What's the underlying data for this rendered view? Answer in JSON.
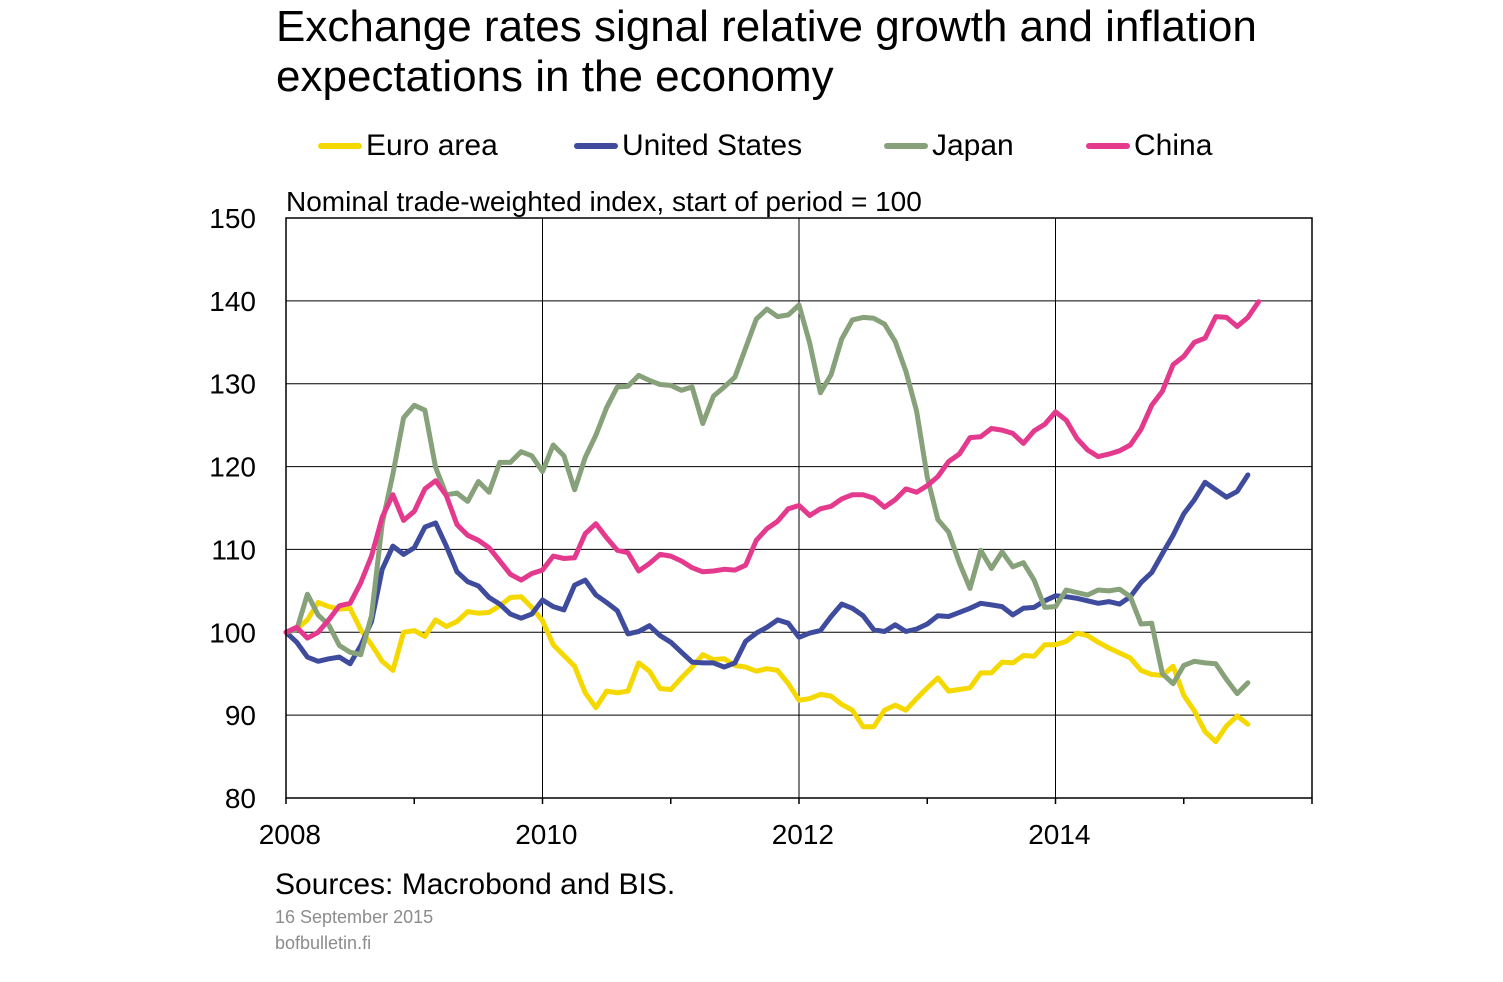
{
  "title": "Exchange rates signal relative growth and inflation expectations in the economy",
  "subtitle": "Nominal trade-weighted index, start of period = 100",
  "source": "Sources: Macrobond and BIS.",
  "date": "16 September 2015",
  "site": "bofbulletin.fi",
  "chart_data": {
    "type": "line",
    "title": "Exchange rates signal relative growth and inflation expectations in the economy",
    "ylabel": "Nominal trade-weighted index, start of period = 100",
    "xlabel": "",
    "ylim": [
      80,
      150
    ],
    "yticks": [
      80,
      90,
      100,
      110,
      120,
      130,
      140,
      150
    ],
    "xlim": [
      2008,
      2016
    ],
    "xtick_labels": [
      "2008",
      "2010",
      "2012",
      "2014"
    ],
    "x_start": "2008-01",
    "x_step": "monthly",
    "grid": true,
    "legend_position": "top",
    "series": [
      {
        "name": "Euro area",
        "color": "#f5d800",
        "values": [
          100.0,
          100.4,
          101.5,
          103.6,
          103.1,
          102.8,
          102.9,
          100.3,
          98.5,
          96.5,
          95.4,
          100.0,
          100.2,
          99.5,
          101.5,
          100.7,
          101.3,
          102.5,
          102.3,
          102.4,
          103.2,
          104.2,
          104.3,
          103.0,
          101.4,
          98.5,
          97.2,
          95.9,
          92.7,
          90.9,
          92.9,
          92.7,
          92.9,
          96.3,
          95.3,
          93.2,
          93.1,
          94.5,
          95.8,
          97.3,
          96.7,
          96.8,
          96.0,
          95.8,
          95.3,
          95.6,
          95.4,
          93.8,
          91.8,
          92.0,
          92.5,
          92.3,
          91.3,
          90.6,
          88.6,
          88.6,
          90.6,
          91.2,
          90.6,
          92.0,
          93.3,
          94.5,
          92.9,
          93.1,
          93.3,
          95.1,
          95.1,
          96.4,
          96.3,
          97.2,
          97.1,
          98.5,
          98.5,
          98.9,
          99.9,
          99.6,
          98.8,
          98.1,
          97.5,
          96.9,
          95.4,
          94.9,
          94.8,
          95.9,
          92.4,
          90.5,
          88.0,
          86.8,
          88.7,
          89.9,
          88.9
        ]
      },
      {
        "name": "United States",
        "color": "#3f4c9e",
        "values": [
          100.0,
          98.8,
          97.0,
          96.5,
          96.8,
          97.0,
          96.2,
          98.4,
          101.3,
          107.6,
          110.4,
          109.4,
          110.2,
          112.7,
          113.2,
          110.4,
          107.3,
          106.1,
          105.6,
          104.2,
          103.4,
          102.2,
          101.7,
          102.2,
          103.9,
          103.1,
          102.7,
          105.7,
          106.3,
          104.5,
          103.6,
          102.6,
          99.8,
          100.1,
          100.8,
          99.6,
          98.8,
          97.6,
          96.4,
          96.3,
          96.3,
          95.8,
          96.3,
          98.9,
          99.9,
          100.6,
          101.5,
          101.1,
          99.4,
          99.9,
          100.2,
          101.9,
          103.4,
          102.9,
          102.0,
          100.3,
          100.1,
          100.9,
          100.1,
          100.4,
          101.0,
          102.0,
          101.9,
          102.4,
          102.9,
          103.5,
          103.3,
          103.1,
          102.1,
          102.9,
          103.0,
          103.8,
          104.4,
          104.3,
          104.1,
          103.8,
          103.5,
          103.7,
          103.4,
          104.3,
          106.0,
          107.2,
          109.5,
          111.7,
          114.3,
          116.0,
          118.1,
          117.2,
          116.3,
          117.0,
          119.0
        ]
      },
      {
        "name": "Japan",
        "color": "#87a17a",
        "values": [
          100.0,
          100.3,
          104.6,
          102.1,
          100.9,
          98.4,
          97.6,
          97.3,
          102.0,
          113.1,
          119.1,
          125.9,
          127.4,
          126.8,
          119.9,
          116.6,
          116.8,
          115.8,
          118.2,
          116.9,
          120.5,
          120.5,
          121.8,
          121.3,
          119.4,
          122.6,
          121.3,
          117.2,
          121.1,
          123.8,
          127.1,
          129.6,
          129.7,
          131.0,
          130.4,
          129.9,
          129.8,
          129.2,
          129.6,
          125.2,
          128.5,
          129.6,
          130.8,
          134.3,
          137.8,
          139.0,
          138.1,
          138.3,
          139.5,
          134.9,
          128.9,
          131.1,
          135.4,
          137.7,
          138.0,
          137.9,
          137.2,
          135.1,
          131.5,
          126.7,
          118.7,
          113.6,
          112.1,
          108.4,
          105.3,
          109.9,
          107.7,
          109.7,
          107.9,
          108.4,
          106.3,
          103.0,
          103.1,
          105.1,
          104.8,
          104.5,
          105.1,
          105.0,
          105.2,
          104.3,
          101.0,
          101.1,
          95.0,
          93.8,
          96.0,
          96.5,
          96.3,
          96.2,
          94.3,
          92.6,
          93.9
        ]
      },
      {
        "name": "China",
        "color": "#e43a8e",
        "values": [
          100.0,
          100.6,
          99.3,
          100.0,
          101.5,
          103.2,
          103.5,
          106.0,
          109.2,
          113.9,
          116.6,
          113.5,
          114.6,
          117.3,
          118.3,
          116.5,
          113.0,
          111.7,
          111.1,
          110.2,
          108.6,
          107.0,
          106.3,
          107.1,
          107.5,
          109.2,
          108.9,
          109.0,
          111.9,
          113.1,
          111.4,
          109.9,
          109.6,
          107.4,
          108.3,
          109.4,
          109.2,
          108.6,
          107.8,
          107.3,
          107.4,
          107.6,
          107.5,
          108.1,
          111.1,
          112.5,
          113.4,
          114.9,
          115.3,
          114.1,
          114.9,
          115.2,
          116.1,
          116.6,
          116.6,
          116.2,
          115.1,
          116.0,
          117.3,
          116.9,
          117.7,
          118.8,
          120.6,
          121.5,
          123.5,
          123.6,
          124.6,
          124.4,
          124.0,
          122.8,
          124.3,
          125.1,
          126.6,
          125.6,
          123.4,
          122.0,
          121.2,
          121.5,
          121.9,
          122.6,
          124.5,
          127.4,
          129.1,
          132.3,
          133.3,
          135.0,
          135.5,
          138.1,
          138.0,
          136.9,
          138.0,
          139.9
        ]
      }
    ]
  }
}
